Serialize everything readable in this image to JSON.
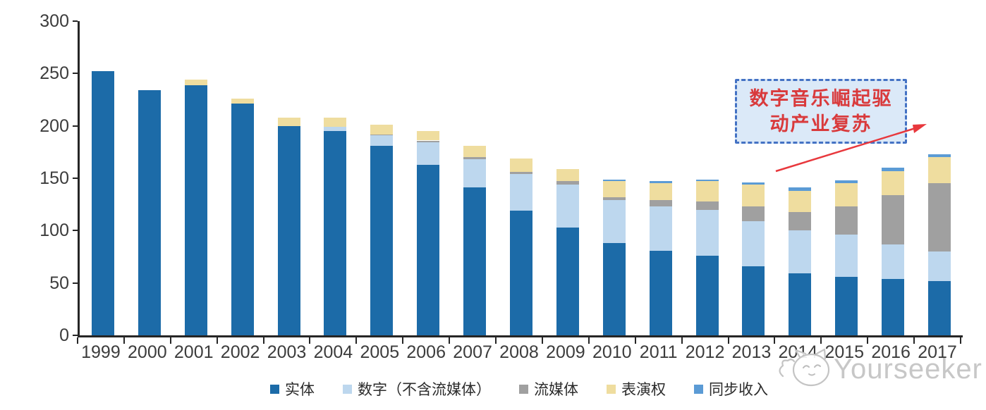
{
  "chart_data": {
    "type": "bar",
    "stacked": true,
    "categories": [
      "1999",
      "2000",
      "2001",
      "2002",
      "2003",
      "2004",
      "2005",
      "2006",
      "2007",
      "2008",
      "2009",
      "2010",
      "2011",
      "2012",
      "2013",
      "2014",
      "2015",
      "2016",
      "2017"
    ],
    "series": [
      {
        "name": "实体",
        "color": "#1C6BA8",
        "values": [
          252,
          234,
          239,
          221,
          200,
          195,
          181,
          163,
          141,
          119,
          103,
          88,
          81,
          76,
          66,
          59,
          56,
          54,
          52
        ]
      },
      {
        "name": "数字（不含流媒体）",
        "color": "#BDD7EE",
        "values": [
          0,
          0,
          0,
          0,
          0,
          4,
          10,
          21,
          27,
          35,
          41,
          41,
          42,
          44,
          43,
          41,
          40,
          33,
          28
        ]
      },
      {
        "name": "流媒体",
        "color": "#A0A0A0",
        "values": [
          0,
          0,
          0,
          0,
          0,
          0,
          1,
          2,
          2,
          2,
          3,
          3,
          6,
          8,
          14,
          18,
          27,
          47,
          65
        ]
      },
      {
        "name": "表演权",
        "color": "#EFDD9F",
        "values": [
          0,
          0,
          5,
          5,
          8,
          9,
          9,
          9,
          11,
          13,
          12,
          15,
          16,
          19,
          21,
          20,
          22,
          23,
          25
        ]
      },
      {
        "name": "同步收入",
        "color": "#5B9BD5",
        "values": [
          0,
          0,
          0,
          0,
          0,
          0,
          0,
          0,
          0,
          0,
          0,
          2,
          2,
          2,
          2,
          3,
          3,
          3,
          3
        ]
      }
    ],
    "ylim": [
      0,
      300
    ],
    "y_ticks": [
      300,
      250,
      200,
      150,
      100,
      50,
      0
    ],
    "grid": false,
    "legend_position": "bottom",
    "axis_color": "#262626",
    "label_color": "#3c3c3c"
  },
  "annotation": {
    "line1": "数字音乐崛起驱",
    "line2": "动产业复苏",
    "text_color": "#D93A3C",
    "box_fill": "#DBE9F8",
    "border_color": "#4472C4",
    "arrow_color": "#E8383D"
  },
  "watermark": {
    "text": "Yourseeker",
    "color": "#c7c7c7"
  }
}
